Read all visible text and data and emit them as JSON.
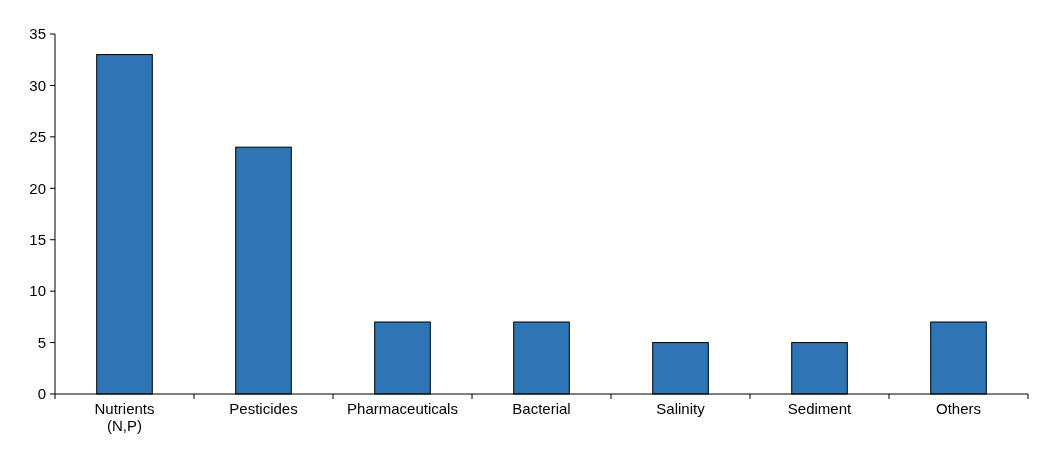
{
  "chart_data": {
    "type": "bar",
    "categories": [
      "Nutrients (N,P)",
      "Pesticides",
      "Pharmaceuticals",
      "Bacterial",
      "Salinity",
      "Sediment",
      "Others"
    ],
    "values": [
      33,
      24,
      7,
      7,
      5,
      5,
      7
    ],
    "color": "#2e75b6",
    "ylim": [
      0,
      35
    ],
    "yticks": [
      0,
      5,
      10,
      15,
      20,
      25,
      30,
      35
    ]
  }
}
